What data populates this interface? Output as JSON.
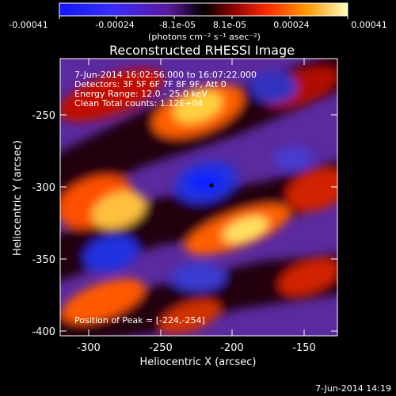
{
  "colorbar": {
    "ticks": [
      "-0.00041",
      "-0.00024",
      "-8.1e-05",
      "8.1e-05",
      "0.00024",
      "0.00041"
    ],
    "units": "(photons cm⁻² s⁻¹ asec⁻²)"
  },
  "plot": {
    "title": "Reconstructed RHESSI Image",
    "xlabel": "Heliocentric X (arcsec)",
    "ylabel": "Heliocentric Y (arcsec)",
    "xticks": [
      "-300",
      "-250",
      "-200",
      "-150"
    ],
    "yticks": [
      "-250",
      "-300",
      "-350",
      "-400"
    ],
    "xlim": [
      -320,
      -130
    ],
    "ylim": [
      -405,
      -220
    ]
  },
  "annotations": {
    "time_range": "7-Jun-2014 16:02:56.000 to 16:07:22.000",
    "detectors": "Detectors: 3F 5F 6F 7F 8F 9F, Att 0",
    "energy": "Energy Range: 12.0 - 25.0 keV",
    "clean": "Clean      Total counts: 1.12E+04",
    "peak": "Position of Peak = [-224,-254]"
  },
  "footer": {
    "timestamp": "7-Jun-2014 14:19"
  }
}
